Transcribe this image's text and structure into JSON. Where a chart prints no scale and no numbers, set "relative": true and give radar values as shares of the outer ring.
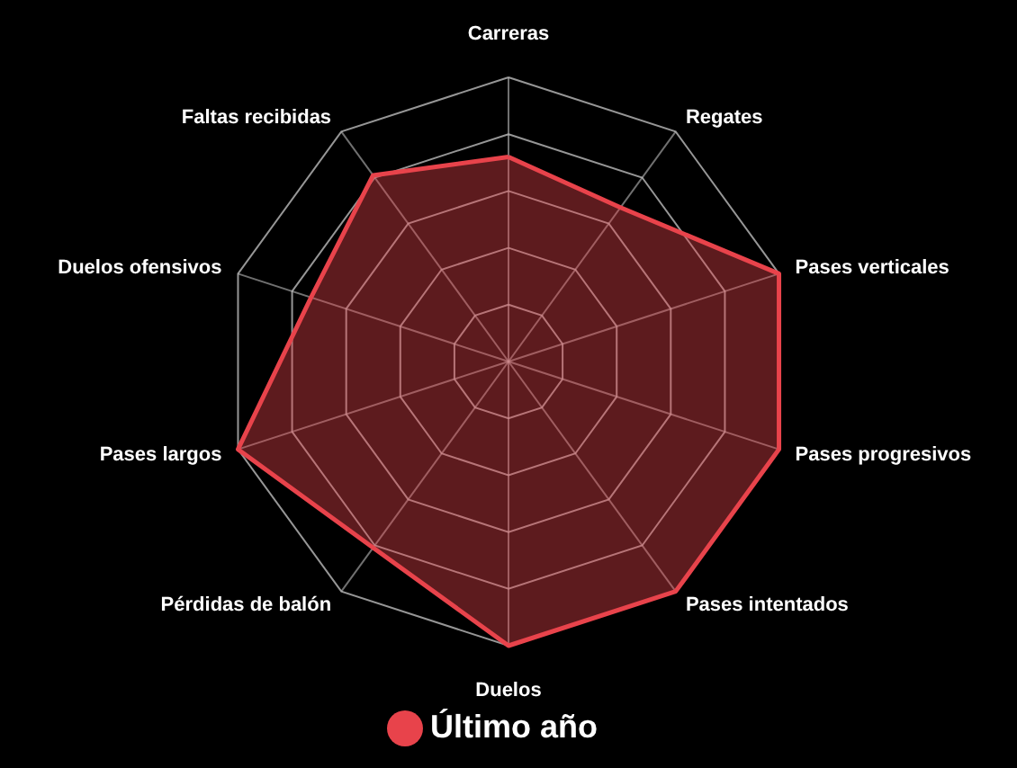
{
  "chart_data": {
    "type": "radar",
    "relative": true,
    "grid": true,
    "legend": "bottom",
    "categories": [
      "Carreras",
      "Regates",
      "Pases verticales",
      "Pases progresivos",
      "Pases intentados",
      "Duelos",
      "Pérdidas de balón",
      "Pases largos",
      "Duelos ofensivos",
      "Faltas recibidas"
    ],
    "series": [
      {
        "name": "Último año",
        "color": "#e8434b",
        "values": [
          0.72,
          0.67,
          1.0,
          1.0,
          1.0,
          1.0,
          0.81,
          1.0,
          0.73,
          0.81
        ]
      }
    ]
  }
}
